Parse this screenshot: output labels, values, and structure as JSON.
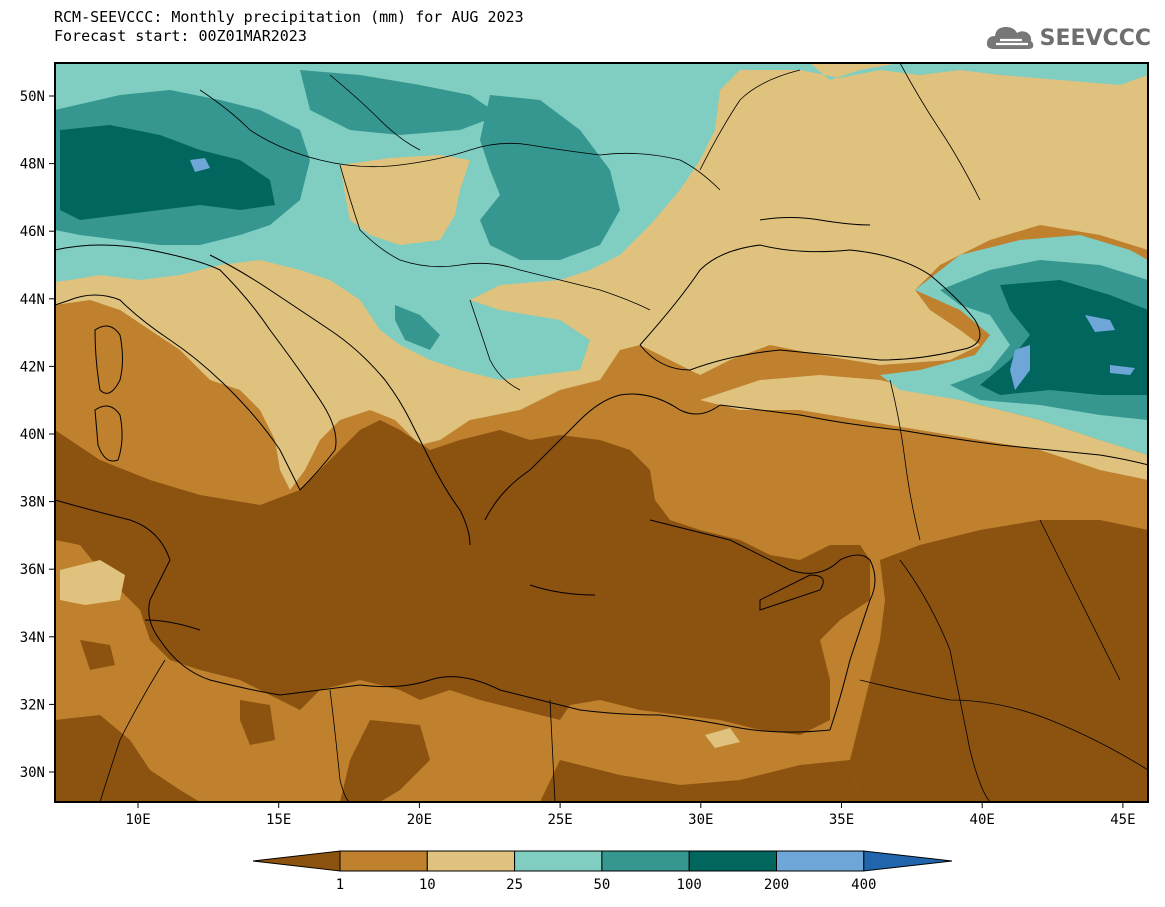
{
  "header": {
    "title": "RCM-SEEVCCC: Monthly precipitation (mm) for AUG 2023",
    "subtitle": "Forecast start: 00Z01MAR2023"
  },
  "logo": {
    "text": "SEEVCCC",
    "icon": "cloud-icon"
  },
  "map": {
    "lat_labels": [
      "50N",
      "48N",
      "46N",
      "44N",
      "42N",
      "40N",
      "38N",
      "36N",
      "34N",
      "32N",
      "30N"
    ],
    "lon_labels": [
      "10E",
      "15E",
      "20E",
      "25E",
      "30E",
      "35E",
      "40E",
      "45E"
    ]
  },
  "colorbar": {
    "thresholds": [
      "1",
      "10",
      "25",
      "50",
      "100",
      "200",
      "400"
    ],
    "colors": [
      "#8c5210",
      "#bf812d",
      "#dfc27d",
      "#80cdc1",
      "#35978f",
      "#01665e",
      "#6ea6d8",
      "#2166ac"
    ]
  }
}
